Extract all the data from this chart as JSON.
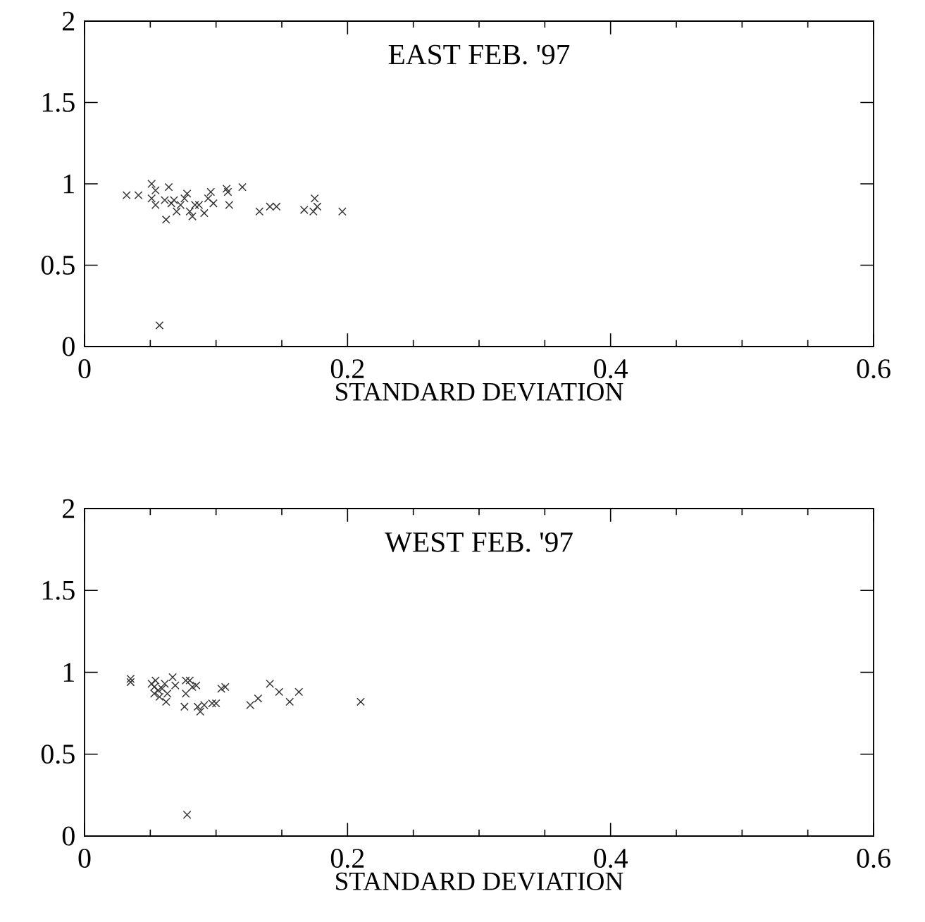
{
  "chart_data": [
    {
      "type": "scatter",
      "title": "EAST FEB. '97",
      "xlabel": "STANDARD DEVIATION",
      "color": "#333333",
      "marker": "cross",
      "x": [
        0.032,
        0.041,
        0.051,
        0.051,
        0.054,
        0.054,
        0.061,
        0.064,
        0.062,
        0.066,
        0.068,
        0.07,
        0.073,
        0.076,
        0.078,
        0.08,
        0.082,
        0.084,
        0.087,
        0.091,
        0.094,
        0.096,
        0.098,
        0.108,
        0.109,
        0.11,
        0.12,
        0.133,
        0.141,
        0.146,
        0.167,
        0.175,
        0.174,
        0.177,
        0.196,
        0.057
      ],
      "values": [
        0.93,
        0.93,
        1.0,
        0.91,
        0.96,
        0.87,
        0.9,
        0.98,
        0.78,
        0.88,
        0.9,
        0.83,
        0.87,
        0.91,
        0.94,
        0.83,
        0.8,
        0.87,
        0.87,
        0.82,
        0.91,
        0.95,
        0.88,
        0.97,
        0.95,
        0.87,
        0.98,
        0.83,
        0.86,
        0.86,
        0.84,
        0.91,
        0.83,
        0.86,
        0.83,
        0.13
      ],
      "xlim": [
        0,
        0.6
      ],
      "ylim": [
        0,
        2
      ],
      "xticks": [
        0,
        0.2,
        0.4,
        0.6
      ],
      "yticks": [
        0,
        0.5,
        1,
        1.5,
        2
      ]
    },
    {
      "type": "scatter",
      "title": "WEST FEB. '97",
      "xlabel": "STANDARD DEVIATION",
      "color": "#333333",
      "marker": "cross",
      "x": [
        0.035,
        0.035,
        0.051,
        0.053,
        0.053,
        0.054,
        0.056,
        0.057,
        0.059,
        0.061,
        0.063,
        0.067,
        0.069,
        0.062,
        0.077,
        0.08,
        0.076,
        0.077,
        0.082,
        0.085,
        0.086,
        0.088,
        0.091,
        0.097,
        0.1,
        0.104,
        0.107,
        0.126,
        0.132,
        0.141,
        0.148,
        0.156,
        0.163,
        0.21,
        0.078
      ],
      "values": [
        0.96,
        0.94,
        0.93,
        0.91,
        0.87,
        0.95,
        0.89,
        0.85,
        0.9,
        0.93,
        0.87,
        0.97,
        0.92,
        0.82,
        0.95,
        0.95,
        0.79,
        0.87,
        0.91,
        0.92,
        0.79,
        0.76,
        0.8,
        0.81,
        0.81,
        0.9,
        0.91,
        0.8,
        0.84,
        0.93,
        0.88,
        0.82,
        0.88,
        0.82,
        0.13
      ],
      "xlim": [
        0,
        0.6
      ],
      "ylim": [
        0,
        2
      ],
      "xticks": [
        0,
        0.2,
        0.4,
        0.6
      ],
      "yticks": [
        0,
        0.5,
        1,
        1.5,
        2
      ]
    }
  ]
}
